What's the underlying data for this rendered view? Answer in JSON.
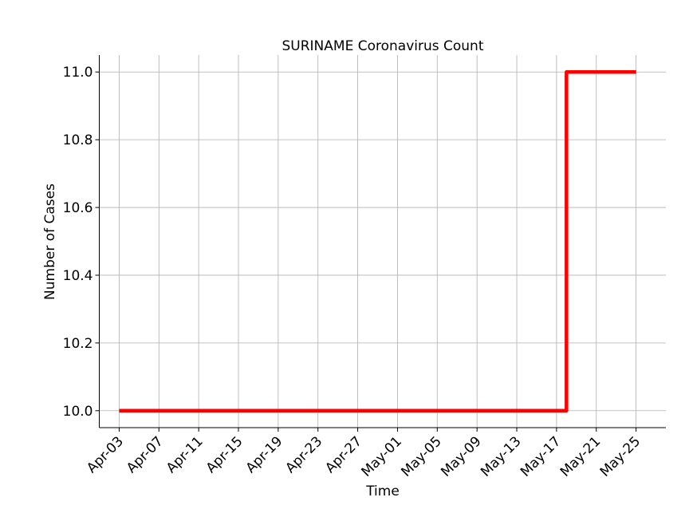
{
  "chart_data": {
    "type": "line",
    "title": "SURINAME Coronavirus Count",
    "xlabel": "Time",
    "ylabel": "Number of Cases",
    "x_tick_labels": [
      "Apr-03",
      "Apr-07",
      "Apr-11",
      "Apr-15",
      "Apr-19",
      "Apr-23",
      "Apr-27",
      "May-01",
      "May-05",
      "May-09",
      "May-13",
      "May-17",
      "May-21",
      "May-25"
    ],
    "y_tick_labels": [
      "10.0",
      "10.2",
      "10.4",
      "10.6",
      "10.8",
      "11.0"
    ],
    "ylim": [
      9.95,
      11.05
    ],
    "xlim": [
      "2020-04-01",
      "2020-05-28"
    ],
    "grid": true,
    "line_style": "steps-post",
    "series": [
      {
        "color": "#ff0000",
        "points": [
          {
            "x": "2020-04-03",
            "y": 10
          },
          {
            "x": "2020-05-18",
            "y": 10
          },
          {
            "x": "2020-05-18",
            "y": 11
          },
          {
            "x": "2020-05-25",
            "y": 11
          }
        ]
      }
    ]
  }
}
